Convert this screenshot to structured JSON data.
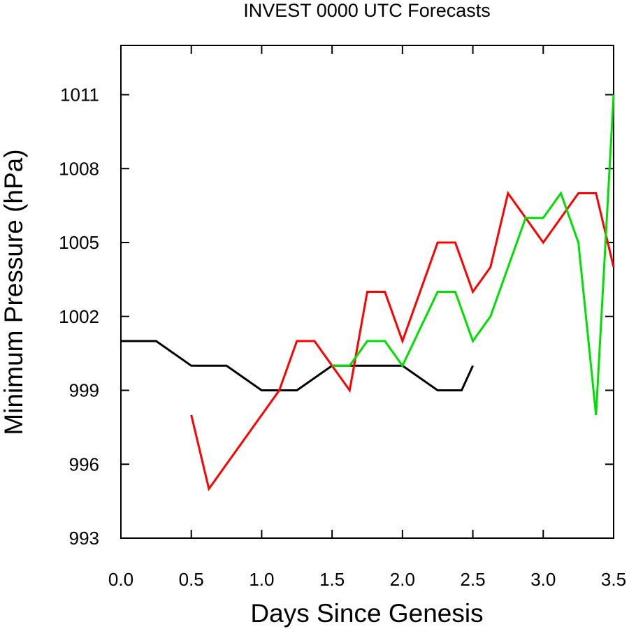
{
  "chart_data": {
    "type": "line",
    "title": "INVEST 0000 UTC Forecasts",
    "xlabel": "Days Since Genesis",
    "ylabel": "Minimum Pressure (hPa)",
    "xlim": [
      0.0,
      3.5
    ],
    "ylim": [
      993,
      1013
    ],
    "xticks": [
      0.0,
      0.5,
      1.0,
      1.5,
      2.0,
      2.5,
      3.0,
      3.5
    ],
    "xtick_labels": [
      "0.0",
      "0.5",
      "1.0",
      "1.5",
      "2.0",
      "2.5",
      "3.0",
      "3.5"
    ],
    "yticks": [
      993,
      996,
      999,
      1002,
      1005,
      1008,
      1011
    ],
    "ytick_labels": [
      "993",
      "996",
      "999",
      "1002",
      "1005",
      "1008",
      "1011"
    ],
    "grid": false,
    "legend": "none",
    "series": [
      {
        "color": "#000000",
        "x": [
          0.0,
          0.25,
          0.5,
          0.75,
          1.0,
          1.25,
          1.5,
          1.75,
          2.0,
          2.25,
          2.42,
          2.5
        ],
        "y": [
          1001,
          1001,
          1000,
          1000,
          999,
          999,
          1000,
          1000,
          1000,
          999,
          999,
          1000
        ]
      },
      {
        "color": "#ff0000",
        "x": [
          0.5,
          0.625,
          1.125,
          1.25,
          1.375,
          1.5,
          1.625,
          1.75,
          1.875,
          2.0,
          2.25,
          2.375,
          2.5,
          2.625,
          2.75,
          2.875,
          3.0,
          3.125,
          3.25,
          3.375,
          3.5
        ],
        "y": [
          998,
          995,
          999,
          1001,
          1001,
          1000,
          999,
          1003,
          1003,
          1001,
          1005,
          1005,
          1003,
          1004,
          1007,
          1006,
          1005,
          1006,
          1007,
          1007,
          1004
        ]
      },
      {
        "color": "#00e000",
        "x": [
          1.5,
          1.625,
          1.75,
          1.875,
          2.0,
          2.25,
          2.375,
          2.5,
          2.625,
          2.875,
          3.0,
          3.125,
          3.25,
          3.375,
          3.5
        ],
        "y": [
          1000,
          1000,
          1001,
          1001,
          1000,
          1003,
          1003,
          1001,
          1002,
          1006,
          1006,
          1007,
          1005,
          998,
          1011
        ]
      }
    ]
  }
}
